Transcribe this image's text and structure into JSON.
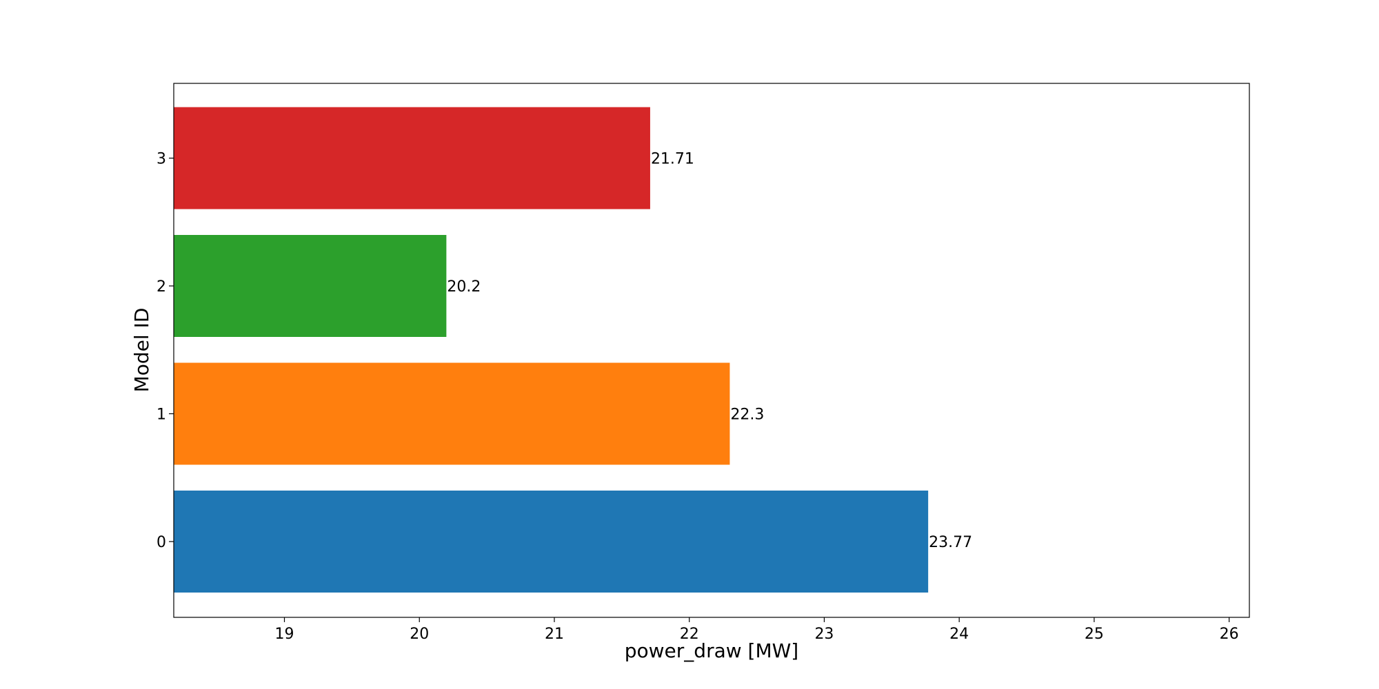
{
  "chart_data": {
    "type": "bar",
    "orientation": "horizontal",
    "title": "",
    "xlabel": "power_draw [MW]",
    "ylabel": "Model ID",
    "categories": [
      "0",
      "1",
      "2",
      "3"
    ],
    "values": [
      23.77,
      22.3,
      20.2,
      21.71
    ],
    "value_labels": [
      "23.77",
      "22.3",
      "20.2",
      "21.71"
    ],
    "colors": [
      "#1f77b4",
      "#ff7f0e",
      "#2ca02c",
      "#d62728"
    ],
    "xlim": [
      18.18,
      26.15
    ],
    "xticks": [
      "19",
      "20",
      "21",
      "22",
      "23",
      "24",
      "25",
      "26"
    ],
    "grid": false,
    "legend": "none"
  }
}
